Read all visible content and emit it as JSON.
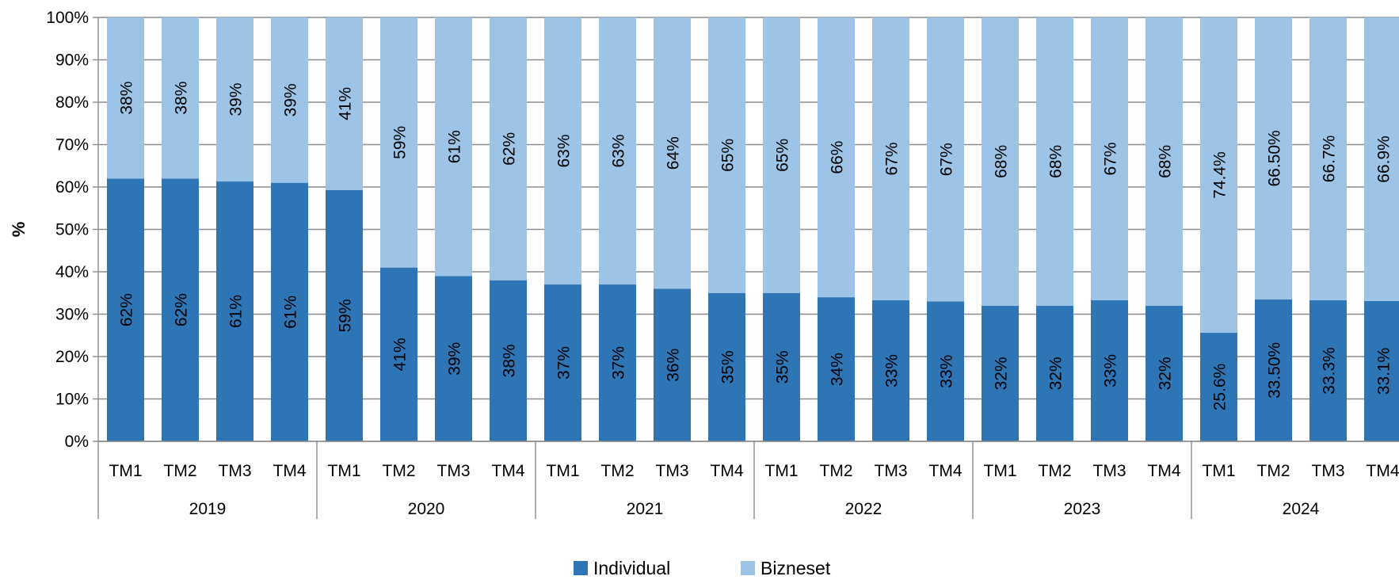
{
  "chart_data": {
    "type": "bar",
    "stacked": true,
    "normalized": true,
    "title": "",
    "xlabel": "",
    "ylabel": "%",
    "ylim": [
      0,
      100
    ],
    "yticks": [
      "0%",
      "10%",
      "20%",
      "30%",
      "40%",
      "50%",
      "60%",
      "70%",
      "80%",
      "90%",
      "100%"
    ],
    "grid": true,
    "legend_position": "bottom-center",
    "groups": [
      {
        "label": "2019",
        "quarters": [
          "TM1",
          "TM2",
          "TM3",
          "TM4"
        ]
      },
      {
        "label": "2020",
        "quarters": [
          "TM1",
          "TM2",
          "TM3",
          "TM4"
        ]
      },
      {
        "label": "2021",
        "quarters": [
          "TM1",
          "TM2",
          "TM3",
          "TM4"
        ]
      },
      {
        "label": "2022",
        "quarters": [
          "TM1",
          "TM2",
          "TM3",
          "TM4"
        ]
      },
      {
        "label": "2023",
        "quarters": [
          "TM1",
          "TM2",
          "TM3",
          "TM4"
        ]
      },
      {
        "label": "2024",
        "quarters": [
          "TM1",
          "TM2",
          "TM3",
          "TM4"
        ]
      }
    ],
    "series": [
      {
        "name": "Individual",
        "color": "#2e75b6",
        "values": [
          62,
          62,
          61.3,
          61,
          59.3,
          41,
          39,
          38,
          37,
          37,
          36,
          35,
          35,
          34,
          33.3,
          33,
          32,
          32,
          33.3,
          32,
          25.6,
          33.5,
          33.3,
          33.1
        ],
        "labels": [
          "62%",
          "62%",
          "61%",
          "61%",
          "59%",
          "41%",
          "39%",
          "38%",
          "37%",
          "37%",
          "36%",
          "35%",
          "35%",
          "34%",
          "33%",
          "33%",
          "32%",
          "32%",
          "33%",
          "32%",
          "25.6%",
          "33.50%",
          "33.3%",
          "33.1%"
        ]
      },
      {
        "name": "Bizneset",
        "color": "#9dc3e6",
        "values": [
          38,
          38,
          38.7,
          39,
          40.7,
          59,
          61,
          62,
          63,
          63,
          64,
          65,
          65,
          66,
          66.7,
          67,
          68,
          68,
          66.7,
          68,
          74.4,
          66.5,
          66.7,
          66.9
        ],
        "labels": [
          "38%",
          "38%",
          "39%",
          "39%",
          "41%",
          "59%",
          "61%",
          "62%",
          "63%",
          "63%",
          "64%",
          "65%",
          "65%",
          "66%",
          "67%",
          "67%",
          "68%",
          "68%",
          "67%",
          "68%",
          "74.4%",
          "66.50%",
          "66.7%",
          "66.9%"
        ]
      }
    ]
  }
}
